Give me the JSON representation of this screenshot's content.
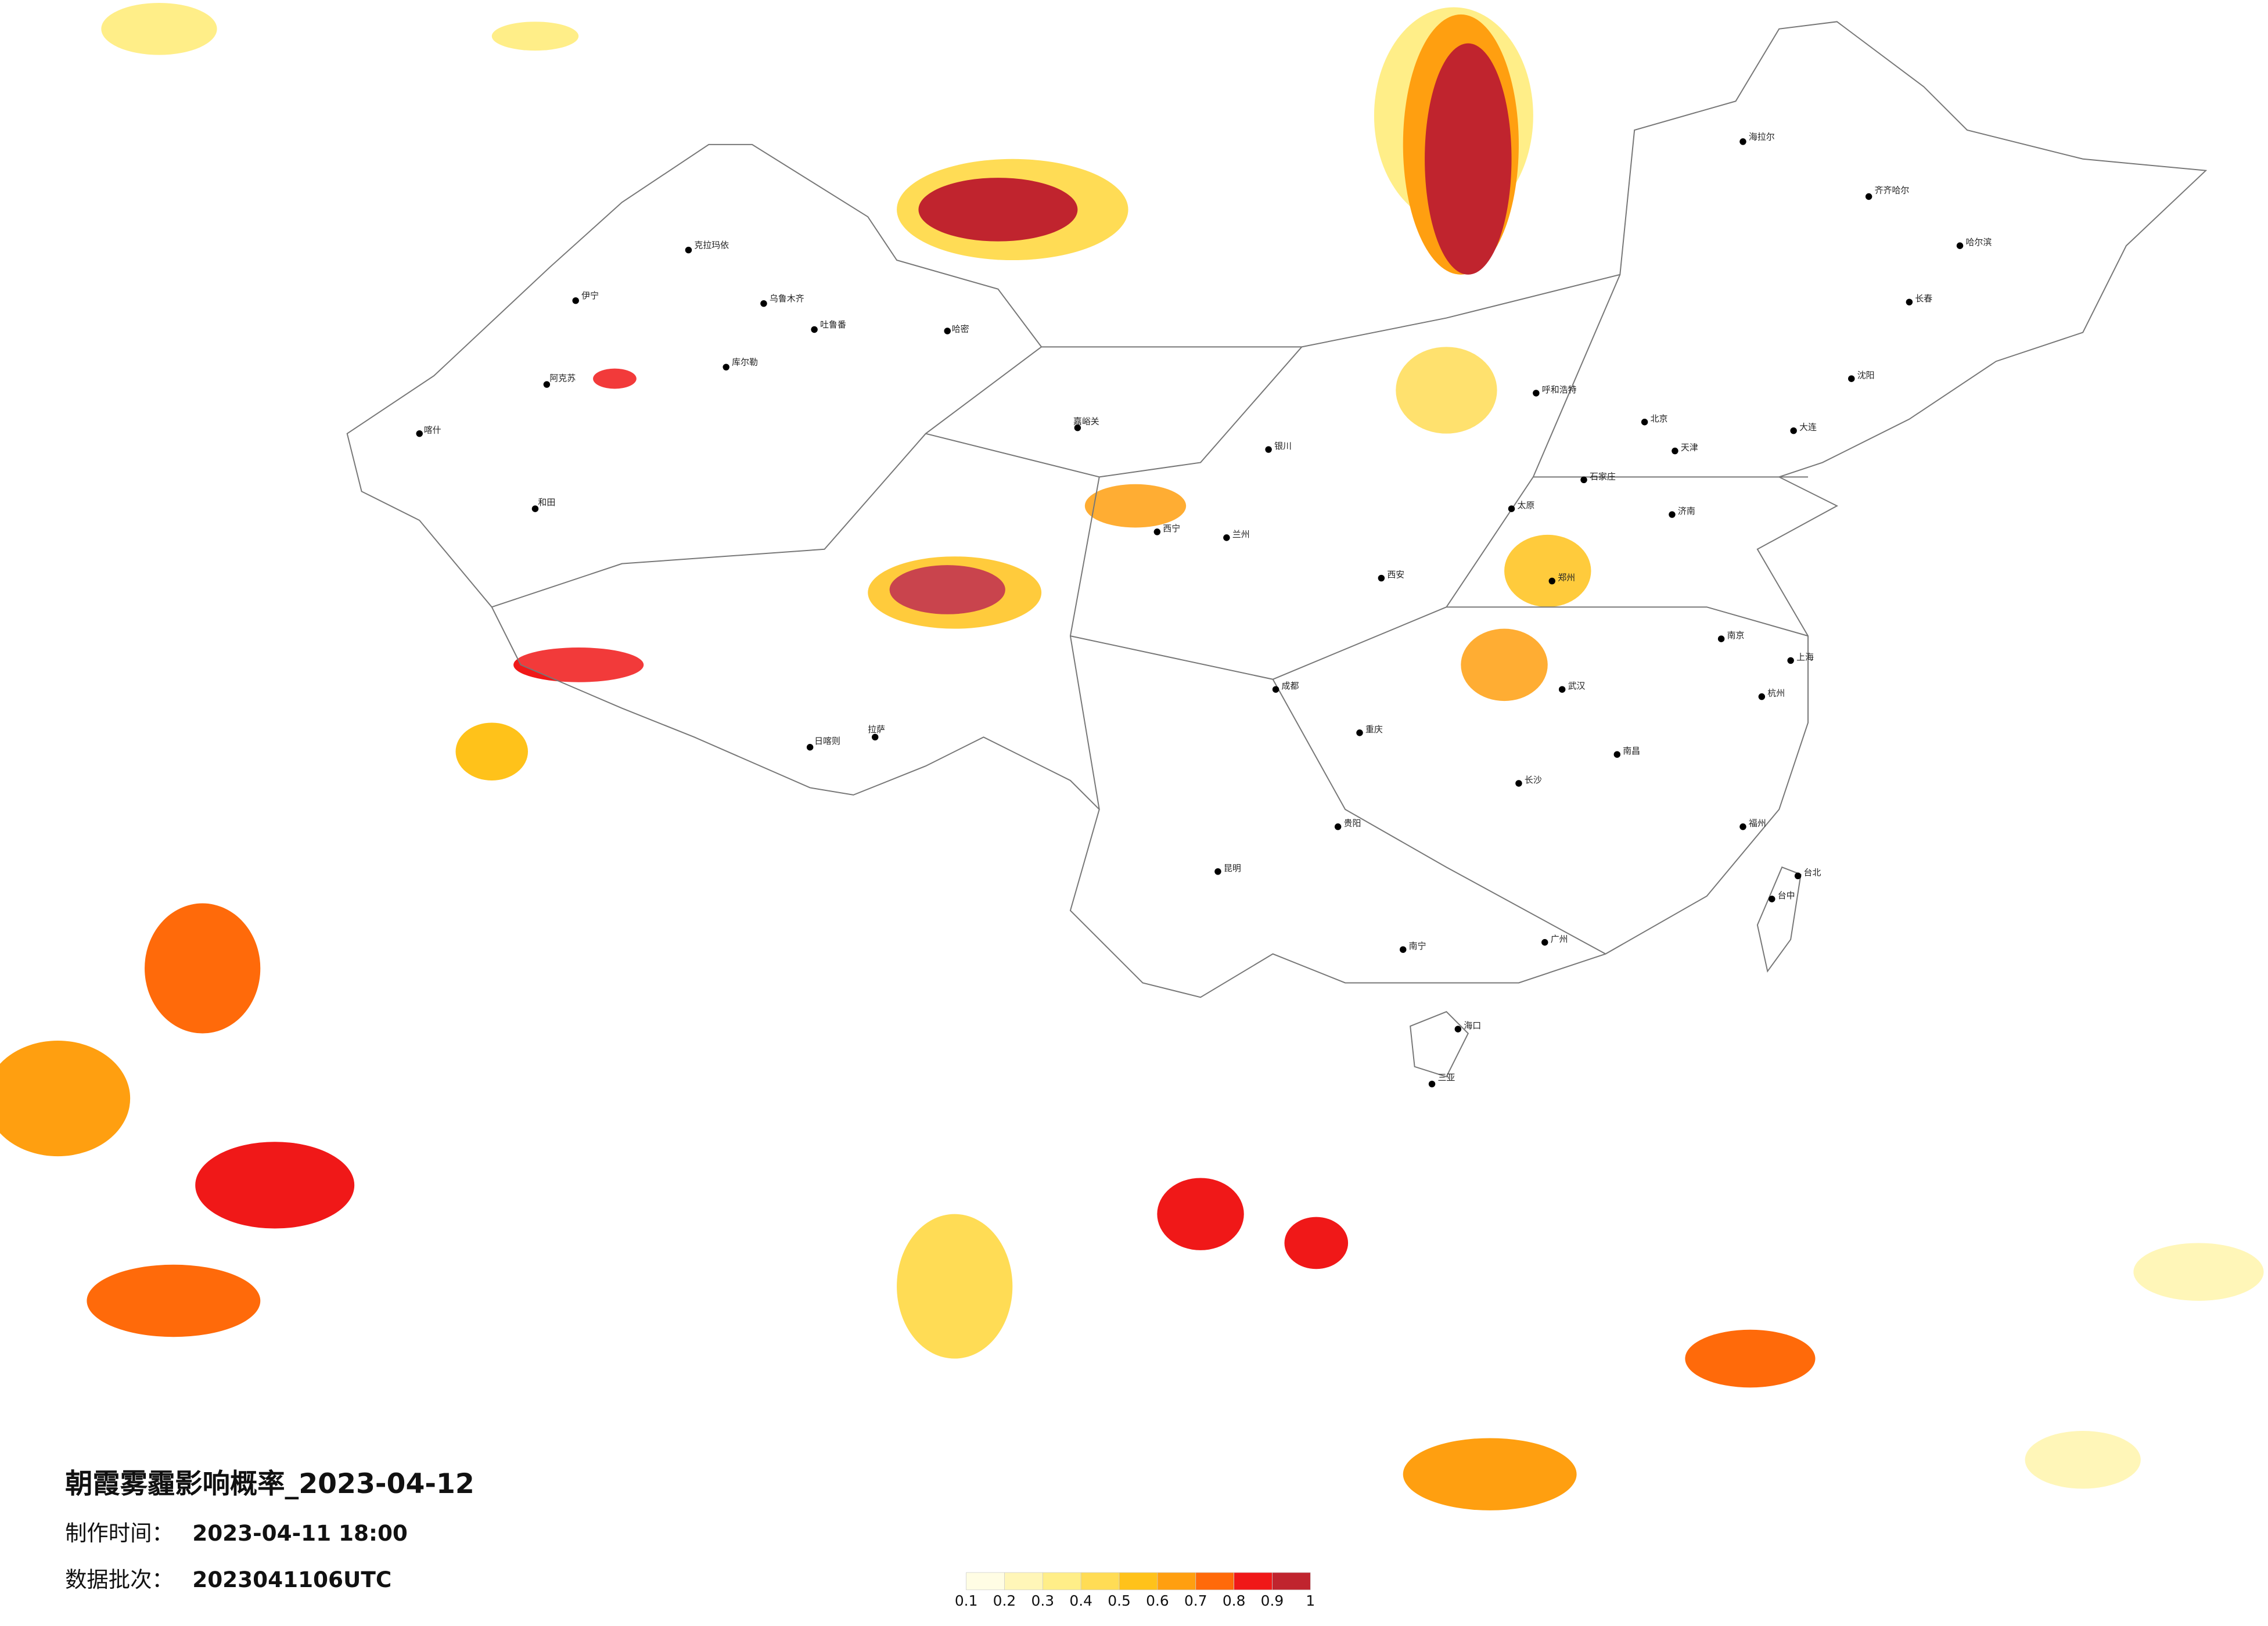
{
  "title": "朝霞雾霾影响概率_2023-04-12",
  "info": {
    "made_label": "制作时间：",
    "made_value": "2023-04-11 18:00",
    "batch_label": "数据批次：",
    "batch_value": "2023041106UTC"
  },
  "legend": {
    "colors": [
      "#fffde4",
      "#fff6b8",
      "#ffee88",
      "#ffdc55",
      "#ffc21a",
      "#ff9f10",
      "#ff6a0a",
      "#f01818",
      "#c0242e"
    ],
    "ticks": [
      0.1,
      0.2,
      0.3,
      0.4,
      0.5,
      0.6,
      0.7,
      0.8,
      0.9,
      1
    ]
  },
  "cities": [
    "克拉玛依",
    "乌鲁木齐",
    "吐鲁番",
    "伊宁",
    "库尔勒",
    "阿克苏",
    "喀什",
    "和田",
    "哈密",
    "嘉峪关",
    "西宁",
    "兰州",
    "银川",
    "呼和浩特",
    "北京",
    "天津",
    "石家庄",
    "太原",
    "济南",
    "郑州",
    "西安",
    "成都",
    "重庆",
    "贵阳",
    "昆明",
    "拉萨",
    "日喀则",
    "武汉",
    "长沙",
    "南昌",
    "南京",
    "上海",
    "杭州",
    "福州",
    "广州",
    "南宁",
    "海口",
    "台北",
    "沈阳",
    "长春",
    "哈尔滨",
    "齐齐哈尔",
    "海拉尔",
    "大连",
    "三亚",
    "台中"
  ]
}
